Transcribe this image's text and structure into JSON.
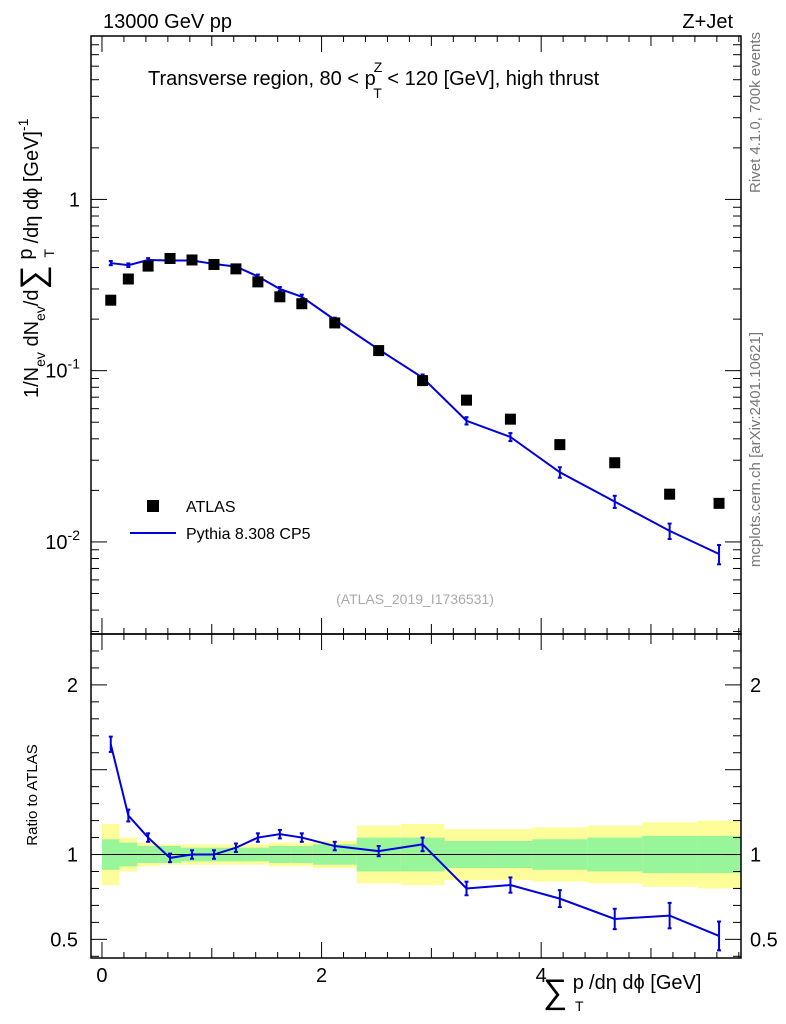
{
  "header": {
    "left_label": "13000 GeV pp",
    "right_label": "Z+Jet"
  },
  "plot_title": {
    "text": "Transverse region, 80 < p",
    "sup": "Z",
    "sub": "T",
    "suffix": " < 120 [GeV], high thrust"
  },
  "side_labels": {
    "rivet": "Rivet 4.1.0,  700k events",
    "mcplots": "mcplots.cern.ch [arXiv:2401.10621]"
  },
  "watermark": "(ATLAS_2019_I1736531)",
  "axis_labels": {
    "main_y": {
      "p1": "1/N",
      "s1": "ev",
      "p2": " dN",
      "s2": "ev",
      "p3": "/d",
      "p4": " p",
      "s4": "T",
      "p5": " /dη dϕ  [GeV]",
      "sup": "-1"
    },
    "sum_symbol": "∑",
    "ratio_y": "Ratio to ATLAS",
    "x": {
      "p1": " p",
      "s1": "T",
      "p2": " /dη dϕ [GeV]"
    }
  },
  "colors": {
    "data": "#000000",
    "mc": "#0000dd",
    "band_inner": "#99f599",
    "band_outer": "#fdfd9a",
    "text_gray": "#777777"
  },
  "chart_data": {
    "type": "scatter",
    "title": "Transverse region, 80 < pT^Z < 120 [GeV], high thrust",
    "xlabel": "Σ pT /dη dϕ [GeV]",
    "ylabel": "1/Nev dNev/d Σ pT /dη dϕ [GeV]^-1",
    "xlim": [
      -0.1,
      5.82
    ],
    "main": {
      "yscale": "log",
      "ylim": [
        0.0029,
        9.0
      ],
      "yticks": [
        {
          "value": 1,
          "label": "1"
        },
        {
          "value": 0.1,
          "label": "10",
          "sup": "-1"
        },
        {
          "value": 0.01,
          "label": "10",
          "sup": "-2"
        }
      ]
    },
    "ratio": {
      "ylabel": "Ratio to ATLAS",
      "ylim": [
        0.39,
        2.3
      ],
      "yticks": [
        {
          "value": 0.5,
          "label": "0.5"
        },
        {
          "value": 1,
          "label": "1"
        },
        {
          "value": 2,
          "label": "2"
        }
      ]
    },
    "xticks": [
      {
        "value": 0,
        "label": "0"
      },
      {
        "value": 2,
        "label": "2"
      },
      {
        "value": 4,
        "label": "4"
      }
    ],
    "legend": {
      "placement": "bottom-left",
      "entries": [
        {
          "name": "ATLAS",
          "style": "marker"
        },
        {
          "name": "Pythia 8.308 CP5",
          "style": "line"
        }
      ]
    },
    "bins": [
      {
        "lo": 0.0,
        "hi": 0.16,
        "center": 0.08
      },
      {
        "lo": 0.16,
        "hi": 0.32,
        "center": 0.24
      },
      {
        "lo": 0.32,
        "hi": 0.52,
        "center": 0.42
      },
      {
        "lo": 0.52,
        "hi": 0.72,
        "center": 0.62
      },
      {
        "lo": 0.72,
        "hi": 0.92,
        "center": 0.82
      },
      {
        "lo": 0.92,
        "hi": 1.12,
        "center": 1.02
      },
      {
        "lo": 1.12,
        "hi": 1.32,
        "center": 1.22
      },
      {
        "lo": 1.32,
        "hi": 1.52,
        "center": 1.42
      },
      {
        "lo": 1.52,
        "hi": 1.72,
        "center": 1.62
      },
      {
        "lo": 1.72,
        "hi": 1.92,
        "center": 1.82
      },
      {
        "lo": 1.92,
        "hi": 2.32,
        "center": 2.12
      },
      {
        "lo": 2.32,
        "hi": 2.72,
        "center": 2.52
      },
      {
        "lo": 2.72,
        "hi": 3.12,
        "center": 2.92
      },
      {
        "lo": 3.12,
        "hi": 3.52,
        "center": 3.32
      },
      {
        "lo": 3.52,
        "hi": 3.92,
        "center": 3.72
      },
      {
        "lo": 3.92,
        "hi": 4.42,
        "center": 4.17
      },
      {
        "lo": 4.42,
        "hi": 4.92,
        "center": 4.67
      },
      {
        "lo": 4.92,
        "hi": 5.42,
        "center": 5.17
      },
      {
        "lo": 5.42,
        "hi": 5.82,
        "center": 5.62
      }
    ],
    "series": [
      {
        "name": "ATLAS",
        "x": [
          0.08,
          0.24,
          0.42,
          0.62,
          0.82,
          1.02,
          1.22,
          1.42,
          1.62,
          1.82,
          2.12,
          2.52,
          2.92,
          3.32,
          3.72,
          4.17,
          4.67,
          5.17,
          5.62
        ],
        "values": [
          0.258,
          0.343,
          0.408,
          0.452,
          0.443,
          0.417,
          0.393,
          0.33,
          0.27,
          0.246,
          0.19,
          0.131,
          0.0875,
          0.0673,
          0.0521,
          0.037,
          0.029,
          0.019,
          0.0168
        ]
      },
      {
        "name": "Pythia 8.308 CP5",
        "x": [
          0.08,
          0.24,
          0.42,
          0.62,
          0.82,
          1.02,
          1.22,
          1.42,
          1.62,
          1.82,
          2.12,
          2.52,
          2.92,
          3.32,
          3.72,
          4.17,
          4.67,
          5.17,
          5.62
        ],
        "values": [
          0.425,
          0.413,
          0.443,
          0.44,
          0.44,
          0.42,
          0.405,
          0.355,
          0.3,
          0.27,
          0.198,
          0.133,
          0.091,
          0.051,
          0.041,
          0.0255,
          0.0172,
          0.0116,
          0.0085
        ],
        "errors": [
          0.012,
          0.01,
          0.011,
          0.01,
          0.01,
          0.01,
          0.01,
          0.009,
          0.008,
          0.008,
          0.006,
          0.004,
          0.004,
          0.0025,
          0.0022,
          0.0018,
          0.0014,
          0.0012,
          0.0011
        ],
        "ratio": [
          1.65,
          1.23,
          1.1,
          0.98,
          1.0,
          1.0,
          1.04,
          1.1,
          1.12,
          1.1,
          1.05,
          1.02,
          1.06,
          0.8,
          0.82,
          0.74,
          0.62,
          0.64,
          0.52
        ],
        "ratio_errors": [
          0.045,
          0.035,
          0.025,
          0.025,
          0.025,
          0.025,
          0.025,
          0.025,
          0.025,
          0.025,
          0.025,
          0.03,
          0.04,
          0.04,
          0.045,
          0.05,
          0.06,
          0.075,
          0.085
        ]
      }
    ],
    "uncertainty_bands": {
      "inner": [
        [
          0.91,
          1.09
        ],
        [
          0.93,
          1.07
        ],
        [
          0.95,
          1.05
        ],
        [
          0.95,
          1.05
        ],
        [
          0.96,
          1.04
        ],
        [
          0.96,
          1.04
        ],
        [
          0.96,
          1.04
        ],
        [
          0.96,
          1.04
        ],
        [
          0.95,
          1.05
        ],
        [
          0.95,
          1.05
        ],
        [
          0.94,
          1.06
        ],
        [
          0.9,
          1.1
        ],
        [
          0.9,
          1.1
        ],
        [
          0.92,
          1.08
        ],
        [
          0.92,
          1.08
        ],
        [
          0.91,
          1.09
        ],
        [
          0.9,
          1.1
        ],
        [
          0.89,
          1.11
        ],
        [
          0.89,
          1.11
        ]
      ],
      "outer": [
        [
          0.82,
          1.18
        ],
        [
          0.9,
          1.1
        ],
        [
          0.93,
          1.07
        ],
        [
          0.94,
          1.06
        ],
        [
          0.94,
          1.06
        ],
        [
          0.94,
          1.06
        ],
        [
          0.94,
          1.06
        ],
        [
          0.94,
          1.06
        ],
        [
          0.93,
          1.07
        ],
        [
          0.93,
          1.07
        ],
        [
          0.92,
          1.08
        ],
        [
          0.83,
          1.17
        ],
        [
          0.82,
          1.18
        ],
        [
          0.85,
          1.15
        ],
        [
          0.85,
          1.15
        ],
        [
          0.84,
          1.16
        ],
        [
          0.83,
          1.17
        ],
        [
          0.81,
          1.19
        ],
        [
          0.8,
          1.2
        ]
      ]
    }
  }
}
